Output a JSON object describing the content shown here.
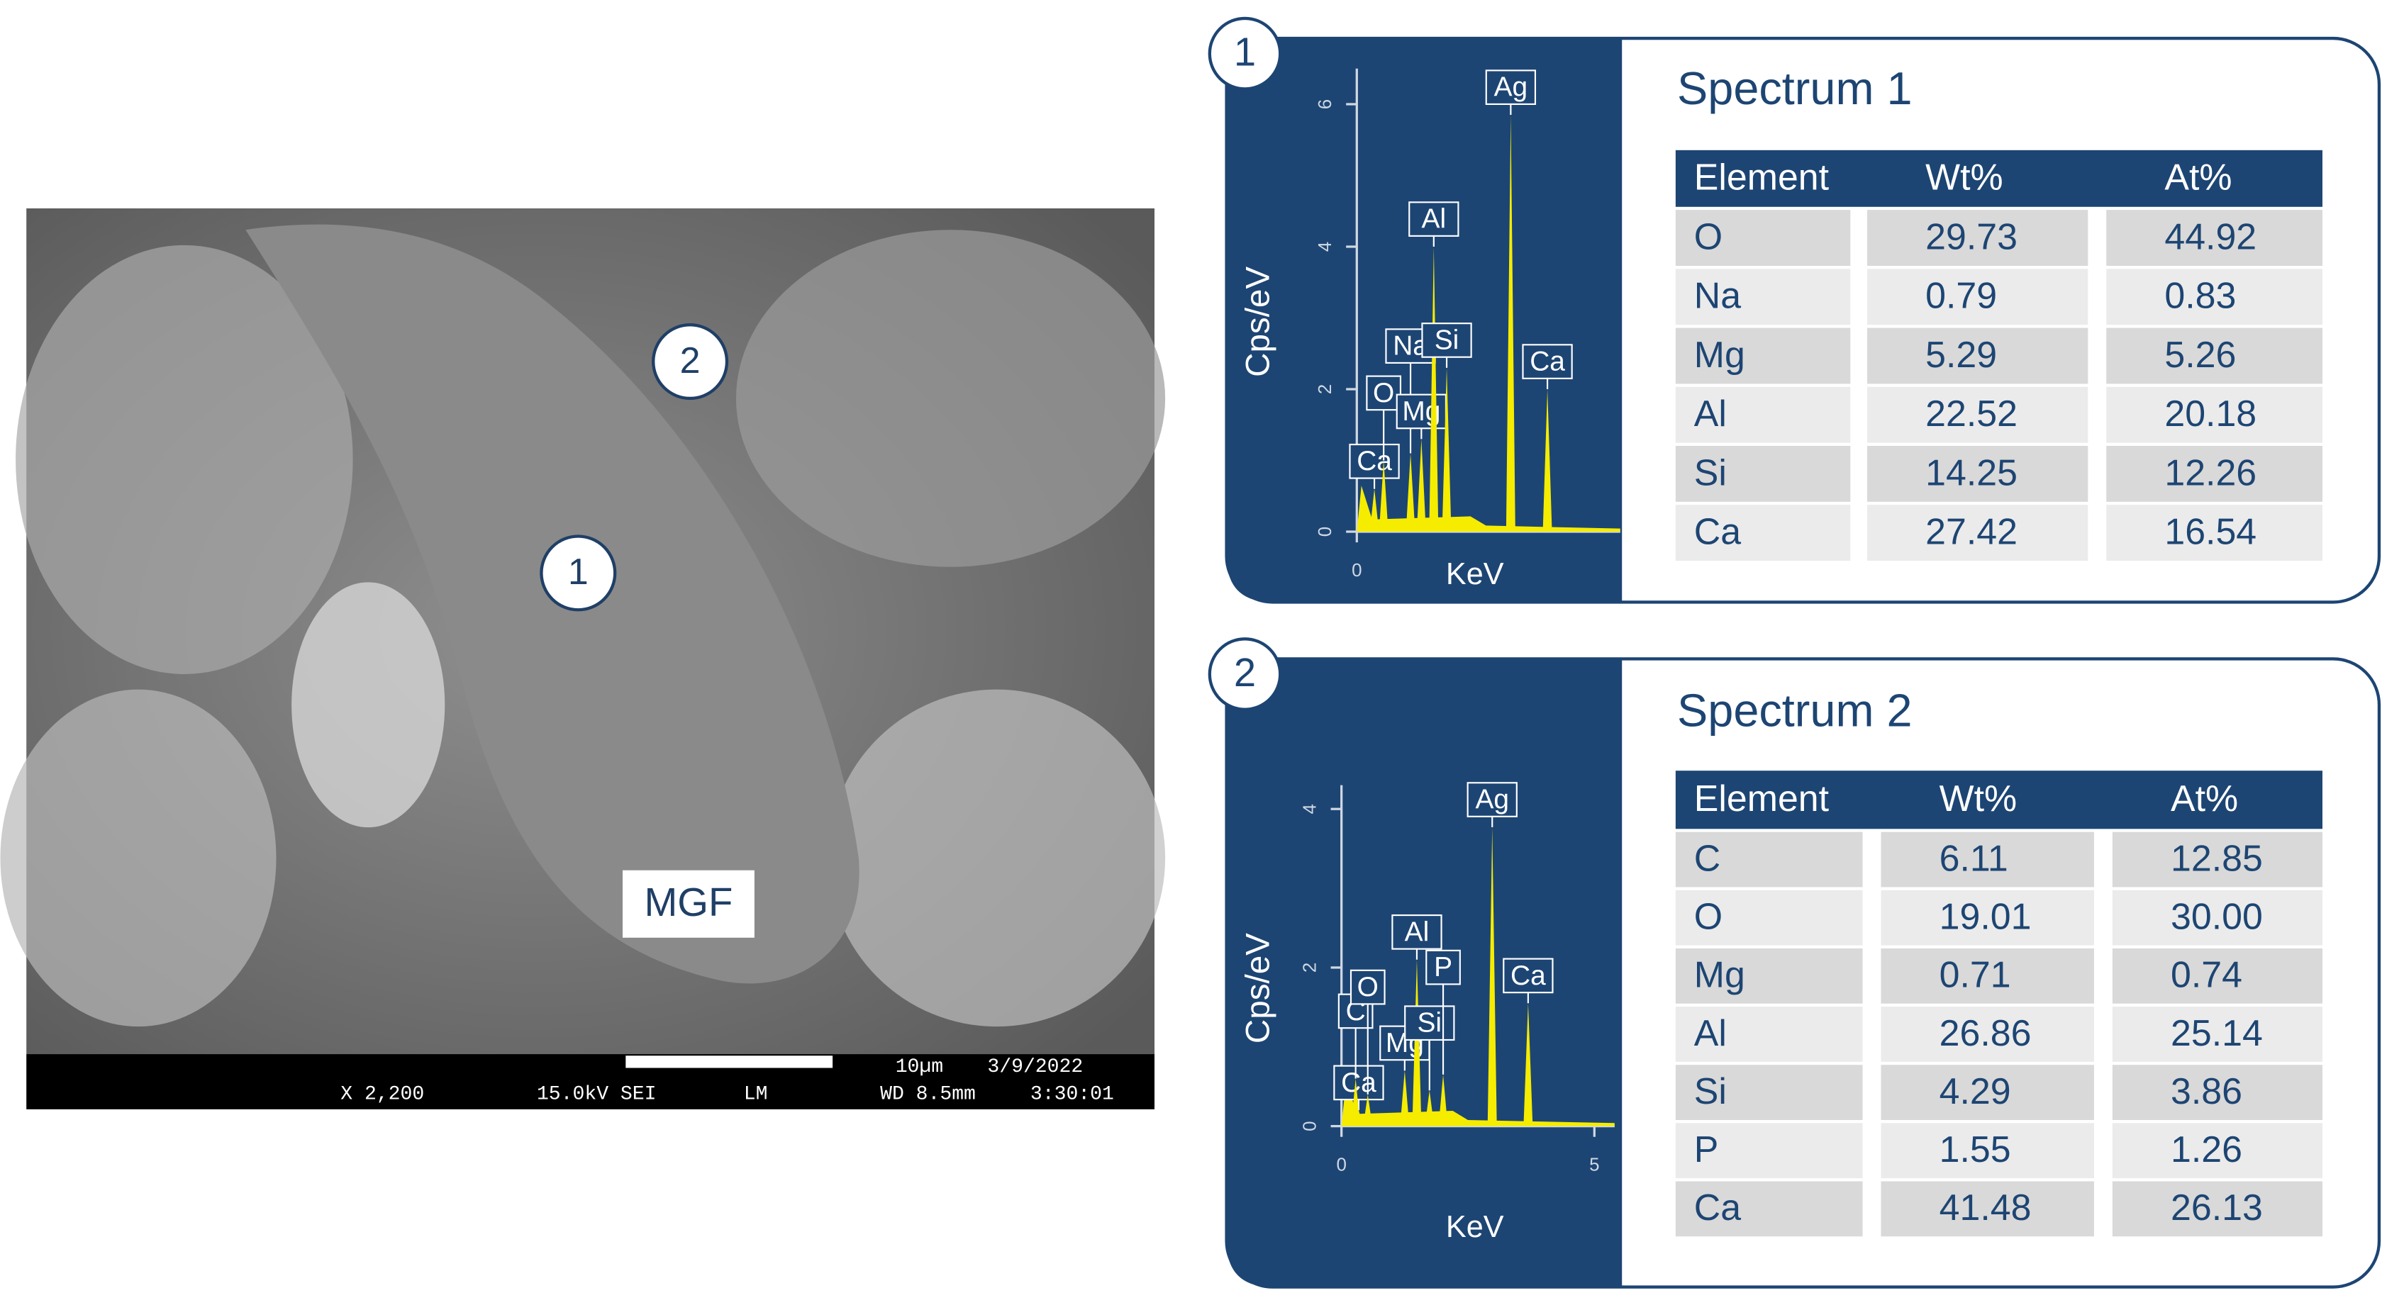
{
  "sem_image": {
    "markers": [
      "1",
      "2"
    ],
    "label": "MGF",
    "info_bar": {
      "magnification": "X 2,200",
      "voltage": "15.0kV SEI",
      "mode": "LM",
      "scale": "10µm",
      "date": "3/9/2022",
      "working_distance": "WD 8.5mm",
      "time": "3:30:01"
    }
  },
  "panels": [
    {
      "number": "1",
      "title": "Spectrum 1",
      "spectrum": {
        "type": "spectrum",
        "y_label": "Cps/eV",
        "x_label": "KeV",
        "xlim": [
          0,
          5.1
        ],
        "xticks": [
          0
        ],
        "ylim": [
          0,
          6.5
        ],
        "yticks": [
          0,
          2,
          4,
          6
        ],
        "color": "#f5ec00",
        "peaks": [
          {
            "label": "Ca",
            "x": 0.34,
            "y": 0.6
          },
          {
            "label": "O",
            "x": 0.52,
            "y": 1.0
          },
          {
            "label": "Na",
            "x": 1.04,
            "y": 1.1
          },
          {
            "label": "Mg",
            "x": 1.25,
            "y": 1.3
          },
          {
            "label": "Al",
            "x": 1.49,
            "y": 4.0
          },
          {
            "label": "Si",
            "x": 1.74,
            "y": 2.3
          },
          {
            "label": "Ag",
            "x": 2.98,
            "y": 5.85
          },
          {
            "label": "Ca",
            "x": 3.69,
            "y": 2.0
          }
        ]
      },
      "table": {
        "header": [
          "Element",
          "Wt%",
          "At%"
        ],
        "rows": [
          [
            "O",
            "29.73",
            "44.92"
          ],
          [
            "Na",
            "0.79",
            "0.83"
          ],
          [
            "Mg",
            "5.29",
            "5.26"
          ],
          [
            "Al",
            "22.52",
            "20.18"
          ],
          [
            "Si",
            "14.25",
            "12.26"
          ],
          [
            "Ca",
            "27.42",
            "16.54"
          ]
        ]
      }
    },
    {
      "number": "2",
      "title": "Spectrum 2",
      "spectrum": {
        "type": "spectrum",
        "y_label": "Cps/eV",
        "x_label": "KeV",
        "xlim": [
          0,
          5.4
        ],
        "xticks": [
          0,
          5
        ],
        "ylim": [
          0,
          4.3
        ],
        "yticks": [
          0,
          2,
          4
        ],
        "color": "#f5ec00",
        "peaks": [
          {
            "label": "Ca",
            "x": 0.34,
            "y": 0.2
          },
          {
            "label": "C",
            "x": 0.28,
            "y": 0.6
          },
          {
            "label": "O",
            "x": 0.52,
            "y": 0.4
          },
          {
            "label": "Mg",
            "x": 1.25,
            "y": 0.7
          },
          {
            "label": "Al",
            "x": 1.49,
            "y": 2.1
          },
          {
            "label": "Si",
            "x": 1.74,
            "y": 0.45
          },
          {
            "label": "P",
            "x": 2.01,
            "y": 0.65
          },
          {
            "label": "Ag",
            "x": 2.98,
            "y": 3.77
          },
          {
            "label": "Ca",
            "x": 3.69,
            "y": 1.55
          }
        ]
      },
      "table": {
        "header": [
          "Element",
          "Wt%",
          "At%"
        ],
        "rows": [
          [
            "C",
            "6.11",
            "12.85"
          ],
          [
            "O",
            "19.01",
            "30.00"
          ],
          [
            "Mg",
            "0.71",
            "0.74"
          ],
          [
            "Al",
            "26.86",
            "25.14"
          ],
          [
            "Si",
            "4.29",
            "3.86"
          ],
          [
            "P",
            "1.55",
            "1.26"
          ],
          [
            "Ca",
            "41.48",
            "26.13"
          ]
        ]
      }
    }
  ]
}
